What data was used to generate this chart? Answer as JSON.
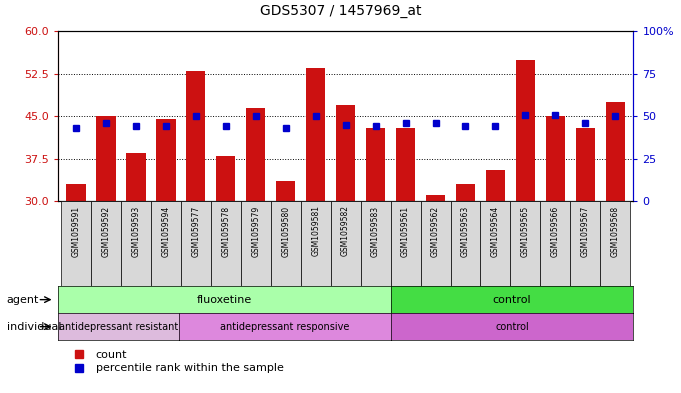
{
  "title": "GDS5307 / 1457969_at",
  "samples": [
    "GSM1059591",
    "GSM1059592",
    "GSM1059593",
    "GSM1059594",
    "GSM1059577",
    "GSM1059578",
    "GSM1059579",
    "GSM1059580",
    "GSM1059581",
    "GSM1059582",
    "GSM1059583",
    "GSM1059561",
    "GSM1059562",
    "GSM1059563",
    "GSM1059564",
    "GSM1059565",
    "GSM1059566",
    "GSM1059567",
    "GSM1059568"
  ],
  "counts": [
    33.0,
    45.0,
    38.5,
    44.5,
    53.0,
    38.0,
    46.5,
    33.5,
    53.5,
    47.0,
    43.0,
    43.0,
    31.0,
    33.0,
    35.5,
    55.0,
    45.0,
    43.0,
    47.5
  ],
  "percentiles_pct": [
    43,
    46,
    44,
    44,
    50,
    44,
    50,
    43,
    50,
    45,
    44,
    46,
    46,
    44,
    44,
    51,
    51,
    46,
    50
  ],
  "ymin": 30,
  "ymax": 60,
  "y_ticks_left": [
    30,
    37.5,
    45,
    52.5,
    60
  ],
  "y_ticks_right": [
    0,
    25,
    50,
    75,
    100
  ],
  "agent_groups": [
    {
      "label": "fluoxetine",
      "start": 0,
      "end": 10,
      "color": "#aaffaa"
    },
    {
      "label": "control",
      "start": 11,
      "end": 18,
      "color": "#44dd44"
    }
  ],
  "individual_groups": [
    {
      "label": "antidepressant resistant",
      "start": 0,
      "end": 3,
      "color": "#ddbbdd"
    },
    {
      "label": "antidepressant responsive",
      "start": 4,
      "end": 10,
      "color": "#dd88dd"
    },
    {
      "label": "control",
      "start": 11,
      "end": 18,
      "color": "#cc66cc"
    }
  ],
  "bar_color": "#cc1111",
  "dot_color": "#0000cc",
  "bar_baseline": 30,
  "tick_color_left": "#cc1111",
  "tick_color_right": "#0000cc",
  "xtick_bg": "#d8d8d8"
}
